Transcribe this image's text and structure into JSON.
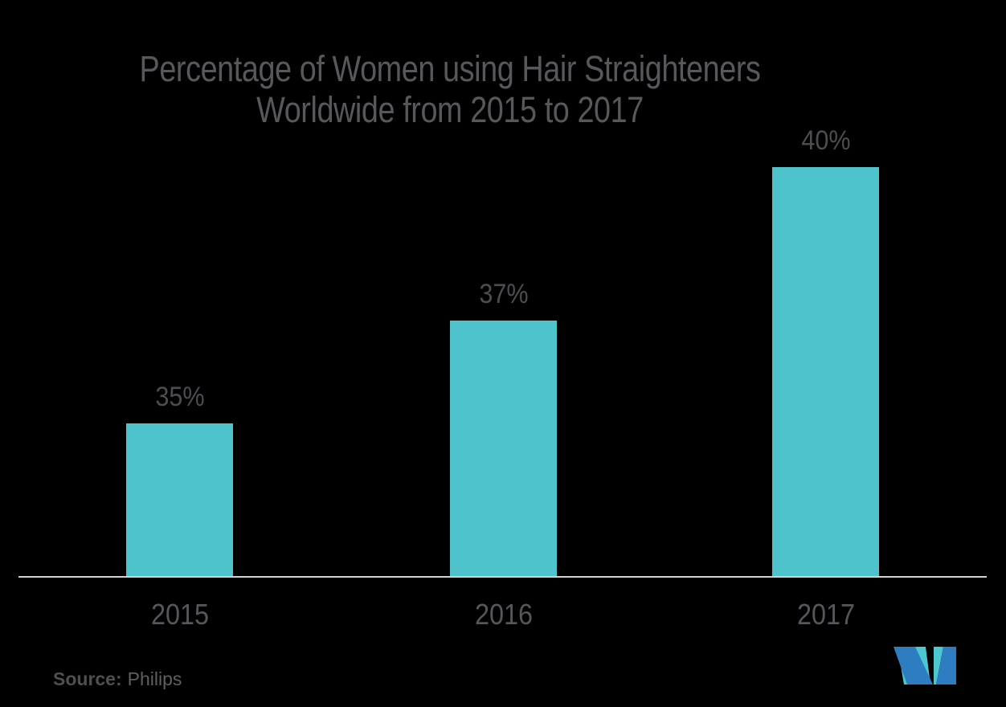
{
  "title": {
    "line1": "Percentage of Women using Hair Straighteners",
    "line2": "Worldwide from 2015 to 2017"
  },
  "source": {
    "label": "Source:",
    "value": "Philips"
  },
  "logo": {
    "name": "mordor-intelligence-logo",
    "teal": "#4CC7D0",
    "blue": "#2E7DC1"
  },
  "colors": {
    "background": "#000000",
    "bar": "#4EC3CC",
    "title_text": "#56585B",
    "value_label_text": "#4B4D50",
    "axis_label_text": "#55575A",
    "axis_line": "#D2D2D2"
  },
  "chart_data": {
    "type": "bar",
    "title": "Percentage of Women using Hair Straighteners Worldwide from 2015 to 2017",
    "categories": [
      "2015",
      "2016",
      "2017"
    ],
    "values": [
      35,
      37,
      40
    ],
    "value_labels": [
      "35%",
      "37%",
      "40%"
    ],
    "unit": "%",
    "xlabel": "",
    "ylabel": "",
    "axis_min_implied": 32,
    "grid": false,
    "legend": false,
    "bar_color": "#4EC3CC",
    "source": "Philips"
  }
}
